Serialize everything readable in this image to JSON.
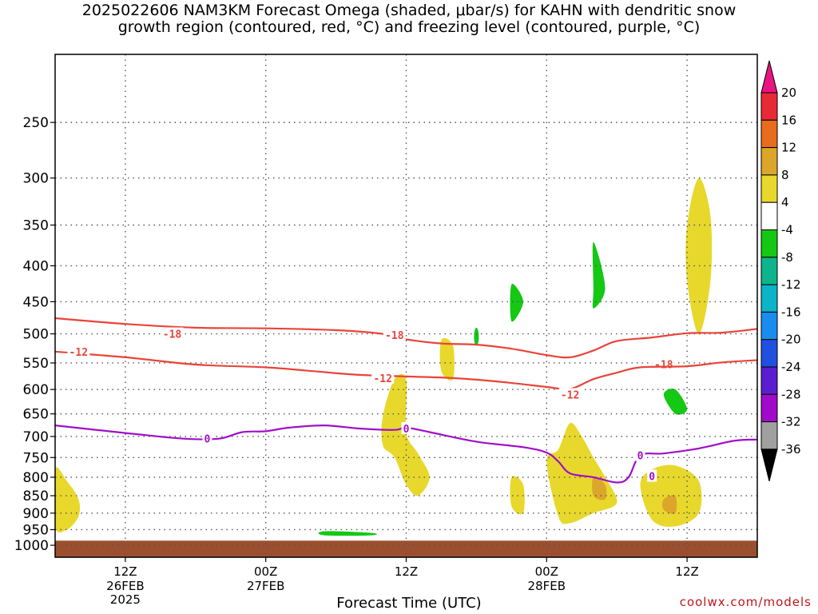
{
  "title": {
    "line1": "2025022606 NAM3KM Forecast Omega (shaded, μbar/s) for KAHN with dendritic snow",
    "line2": "growth region (contoured, red, °C) and freezing level (contoured, purple, °C)"
  },
  "credit": "coolwx.com/models",
  "chart_data": {
    "type": "time-height cross section",
    "x_axis": {
      "title": "Forecast Time (UTC)",
      "ticks": [
        {
          "label": "12Z",
          "sub": [
            "26FEB",
            "2025"
          ],
          "hour": 6
        },
        {
          "label": "00Z",
          "sub": [
            "27FEB"
          ],
          "hour": 18
        },
        {
          "label": "12Z",
          "sub": [],
          "hour": 30
        },
        {
          "label": "00Z",
          "sub": [
            "28FEB"
          ],
          "hour": 42
        },
        {
          "label": "12Z",
          "sub": [],
          "hour": 54
        }
      ],
      "range_hours": [
        0,
        60
      ]
    },
    "y_axis": {
      "scale": "log",
      "range_hpa": [
        1040,
        200
      ],
      "ticks": [
        250,
        300,
        350,
        400,
        450,
        500,
        550,
        600,
        650,
        700,
        750,
        800,
        850,
        900,
        950,
        1000
      ]
    },
    "colorbar": {
      "labels": [
        "20",
        "16",
        "12",
        "8",
        "4",
        "-4",
        "-8",
        "-12",
        "-16",
        "-20",
        "-24",
        "-28",
        "-32",
        "-36"
      ],
      "colors": [
        "#e82a36",
        "#e86c1e",
        "#dca62a",
        "#e8d82c",
        "#ffffff",
        "#14c814",
        "#0eb48c",
        "#0cb4c8",
        "#1a8cf0",
        "#2050e0",
        "#5a1ed0",
        "#a00ac8",
        "#a0a0a0"
      ],
      "top_arrow_color": "#e81482",
      "bottom_arrow_color": "#000000"
    },
    "contours": [
      {
        "label": "-18",
        "color": "#e8443a",
        "label_at": [
          [
            10,
            500
          ],
          [
            29,
            502
          ],
          [
            52,
            552
          ]
        ],
        "points": [
          [
            0,
            475
          ],
          [
            6,
            484
          ],
          [
            12,
            490
          ],
          [
            18,
            491
          ],
          [
            24,
            494
          ],
          [
            28,
            500
          ],
          [
            30,
            509
          ],
          [
            33,
            516
          ],
          [
            36,
            518
          ],
          [
            39,
            525
          ],
          [
            42,
            536
          ],
          [
            44,
            540
          ],
          [
            46,
            528
          ],
          [
            48,
            512
          ],
          [
            51,
            506
          ],
          [
            54,
            499
          ],
          [
            57,
            498
          ],
          [
            60,
            492
          ]
        ]
      },
      {
        "label": "-12",
        "color": "#e8443a",
        "label_at": [
          [
            2,
            530
          ],
          [
            28,
            578
          ],
          [
            44,
            610
          ]
        ],
        "points": [
          [
            0,
            530
          ],
          [
            6,
            540
          ],
          [
            12,
            553
          ],
          [
            18,
            558
          ],
          [
            22,
            565
          ],
          [
            26,
            572
          ],
          [
            30,
            575
          ],
          [
            34,
            578
          ],
          [
            38,
            585
          ],
          [
            42,
            595
          ],
          [
            44,
            599
          ],
          [
            46,
            580
          ],
          [
            48,
            568
          ],
          [
            50,
            558
          ],
          [
            54,
            556
          ],
          [
            57,
            549
          ],
          [
            60,
            545
          ]
        ]
      },
      {
        "label": "0",
        "color": "#a010c8",
        "label_at": [
          [
            13,
            705
          ],
          [
            30,
            682
          ],
          [
            50,
            745
          ],
          [
            51,
            797
          ]
        ],
        "points": [
          [
            0,
            675
          ],
          [
            6,
            692
          ],
          [
            11,
            705
          ],
          [
            14,
            705
          ],
          [
            16,
            690
          ],
          [
            18,
            688
          ],
          [
            20,
            680
          ],
          [
            23,
            675
          ],
          [
            26,
            682
          ],
          [
            29,
            685
          ],
          [
            30,
            680
          ],
          [
            32,
            690
          ],
          [
            36,
            712
          ],
          [
            40,
            725
          ],
          [
            42,
            738
          ],
          [
            43,
            760
          ],
          [
            44,
            790
          ],
          [
            46,
            800
          ],
          [
            48,
            814
          ],
          [
            49,
            800
          ],
          [
            50,
            745
          ],
          [
            52,
            740
          ],
          [
            55,
            728
          ],
          [
            58,
            710
          ],
          [
            60,
            707
          ]
        ]
      }
    ],
    "omega_regions": [
      {
        "color": "#e8d82c",
        "points": [
          [
            0,
            780
          ],
          [
            1,
            810
          ],
          [
            2,
            860
          ],
          [
            2,
            910
          ],
          [
            1,
            950
          ],
          [
            0,
            940
          ]
        ]
      },
      {
        "color": "#e8d82c",
        "points": [
          [
            28,
            655
          ],
          [
            29,
            580
          ],
          [
            30,
            582
          ],
          [
            30,
            690
          ],
          [
            31,
            740
          ],
          [
            32,
            800
          ],
          [
            31,
            850
          ],
          [
            30,
            820
          ],
          [
            29,
            750
          ],
          [
            28,
            720
          ]
        ]
      },
      {
        "color": "#e8d82c",
        "points": [
          [
            33,
            510
          ],
          [
            34,
            520
          ],
          [
            34,
            580
          ],
          [
            33,
            565
          ]
        ]
      },
      {
        "color": "#e8d82c",
        "points": [
          [
            39,
            800
          ],
          [
            40,
            820
          ],
          [
            40,
            900
          ],
          [
            39,
            880
          ]
        ]
      },
      {
        "color": "#e8d82c",
        "points": [
          [
            42,
            760
          ],
          [
            43,
            730
          ],
          [
            44,
            670
          ],
          [
            45,
            700
          ],
          [
            46,
            750
          ],
          [
            47,
            800
          ],
          [
            48,
            870
          ],
          [
            46,
            900
          ],
          [
            44,
            930
          ],
          [
            43,
            910
          ]
        ]
      },
      {
        "color": "#e8d82c",
        "points": [
          [
            50,
            820
          ],
          [
            51,
            780
          ],
          [
            53,
            770
          ],
          [
            55,
            810
          ],
          [
            55,
            900
          ],
          [
            53,
            940
          ],
          [
            51,
            920
          ]
        ]
      },
      {
        "color": "#e8d82c",
        "points": [
          [
            54,
            350
          ],
          [
            55,
            300
          ],
          [
            56,
            340
          ],
          [
            56,
            420
          ],
          [
            55,
            500
          ],
          [
            54,
            420
          ]
        ]
      },
      {
        "color": "#dca62a",
        "points": [
          [
            55,
            350
          ],
          [
            55,
            420
          ],
          [
            55,
            370
          ]
        ]
      },
      {
        "color": "#dca62a",
        "points": [
          [
            46,
            800
          ],
          [
            47,
            820
          ],
          [
            47,
            860
          ],
          [
            46,
            850
          ]
        ]
      },
      {
        "color": "#dca62a",
        "points": [
          [
            52,
            860
          ],
          [
            53,
            850
          ],
          [
            53,
            900
          ],
          [
            52,
            890
          ]
        ]
      },
      {
        "color": "#14c814",
        "points": [
          [
            46,
            370
          ],
          [
            47,
            430
          ],
          [
            46,
            460
          ],
          [
            46,
            430
          ]
        ]
      },
      {
        "color": "#14c814",
        "points": [
          [
            39,
            425
          ],
          [
            40,
            450
          ],
          [
            39,
            480
          ]
        ]
      },
      {
        "color": "#14c814",
        "points": [
          [
            36,
            490
          ],
          [
            36,
            520
          ]
        ]
      },
      {
        "color": "#14c814",
        "points": [
          [
            52,
            610
          ],
          [
            53,
            600
          ],
          [
            54,
            640
          ],
          [
            53,
            650
          ]
        ]
      },
      {
        "color": "#14c814",
        "points": [
          [
            23,
            955
          ],
          [
            27,
            960
          ],
          [
            27,
            968
          ],
          [
            23,
            968
          ]
        ]
      }
    ],
    "ground_color": "#9c4f2e",
    "ground_pressure": 985
  }
}
